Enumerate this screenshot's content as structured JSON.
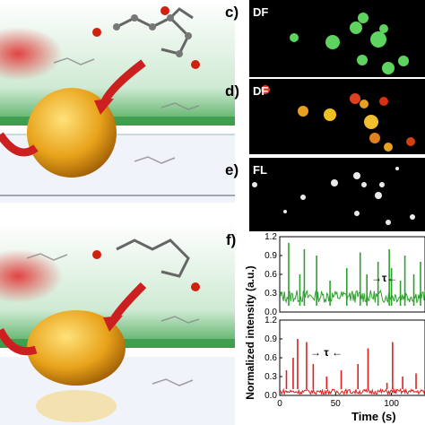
{
  "panels": {
    "c": {
      "label": "c)",
      "tag": "DF"
    },
    "d": {
      "label": "d)",
      "tag": "DF"
    },
    "e": {
      "label": "e)",
      "tag": "FL"
    },
    "f": {
      "label": "f)"
    }
  },
  "chart_data": {
    "type": "line",
    "xlabel": "Time (s)",
    "ylabel": "Normalized intensity (a.u.)",
    "yticks": [
      "0.0",
      "0.3",
      "0.6",
      "0.9",
      "1.2"
    ],
    "xticks": [
      "0",
      "50",
      "100"
    ],
    "ylim": [
      0,
      1.2
    ],
    "xlim": [
      0,
      130
    ],
    "annotation": "τ",
    "series": [
      {
        "color": "#2ea02e",
        "spikes": [
          [
            8,
            1.1
          ],
          [
            18,
            0.6
          ],
          [
            22,
            1.0
          ],
          [
            33,
            0.9
          ],
          [
            45,
            0.5
          ],
          [
            60,
            0.7
          ],
          [
            72,
            0.95
          ],
          [
            78,
            0.6
          ],
          [
            88,
            0.8
          ],
          [
            98,
            1.0
          ],
          [
            100,
            0.7
          ],
          [
            108,
            0.5
          ],
          [
            112,
            0.9
          ],
          [
            120,
            0.6
          ],
          [
            126,
            0.8
          ]
        ]
      },
      {
        "color": "#e02020",
        "spikes": [
          [
            6,
            0.4
          ],
          [
            12,
            0.6
          ],
          [
            16,
            0.9
          ],
          [
            24,
            0.85
          ],
          [
            30,
            0.5
          ],
          [
            42,
            0.3
          ],
          [
            55,
            0.4
          ],
          [
            70,
            0.5
          ],
          [
            79,
            0.75
          ],
          [
            96,
            0.2
          ],
          [
            101,
            0.85
          ],
          [
            110,
            0.3
          ],
          [
            122,
            0.35
          ]
        ]
      }
    ]
  }
}
